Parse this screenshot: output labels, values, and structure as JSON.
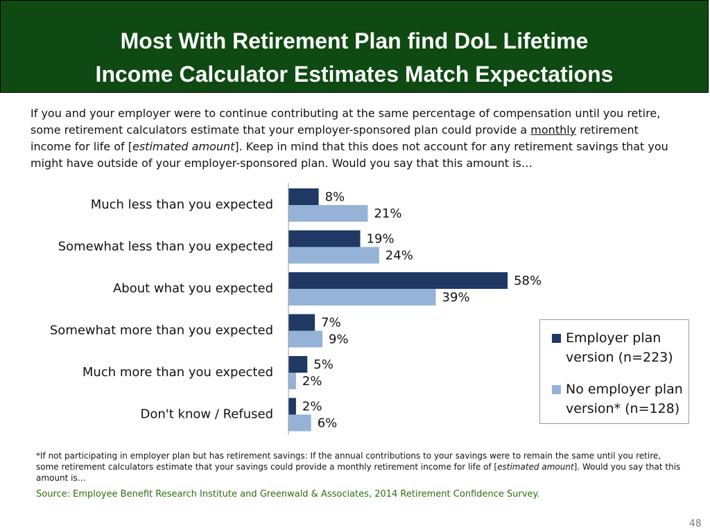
{
  "title": {
    "line1": "Most With Retirement Plan find DoL Lifetime",
    "line2": "Income Calculator Estimates Match Expectations"
  },
  "question": {
    "part1": "If you and your employer were to continue contributing at the same percentage of compensation until you retire, some retirement calculators estimate that your employer-sponsored plan could provide a ",
    "underlined": "monthly",
    "part2": " retirement income for life of [",
    "italic": "estimated amount",
    "part3": "]. Keep in mind that this does not account for any retirement savings that you might have outside of your employer-sponsored plan. Would you say that this amount is…"
  },
  "chart_data": {
    "type": "bar",
    "orientation": "horizontal",
    "categories": [
      "Much less than you expected",
      "Somewhat less than you expected",
      "About what you expected",
      "Somewhat more than you expected",
      "Much more than you expected",
      "Don't know / Refused"
    ],
    "series": [
      {
        "name": "Employer plan version (n=223)",
        "values": [
          8,
          19,
          58,
          7,
          5,
          2
        ],
        "color": "#1f3864"
      },
      {
        "name": "No employer plan version* (n=128)",
        "values": [
          21,
          24,
          39,
          9,
          2,
          6
        ],
        "color": "#95b3d7"
      }
    ],
    "value_suffix": "%",
    "xlim": [
      0,
      60
    ],
    "grid": false,
    "legend": "right"
  },
  "legend": {
    "items": [
      {
        "label": "Employer plan version (n=223)",
        "color": "#1f3864"
      },
      {
        "label": "No employer plan version* (n=128)",
        "color": "#95b3d7"
      }
    ]
  },
  "footnote": {
    "part1": "*If not participating in employer plan but has retirement savings: If the annual contributions to your savings were to remain the same until you retire, some retirement calculators estimate that your savings could provide a monthly retirement income for life of [",
    "italic": "estimated amount",
    "part2": "]. Would  you say that this amount is…"
  },
  "source": "Source:  Employee Benefit Research Institute and Greenwald & Associates, 2014 Retirement Confidence Survey.",
  "page_number": "48"
}
